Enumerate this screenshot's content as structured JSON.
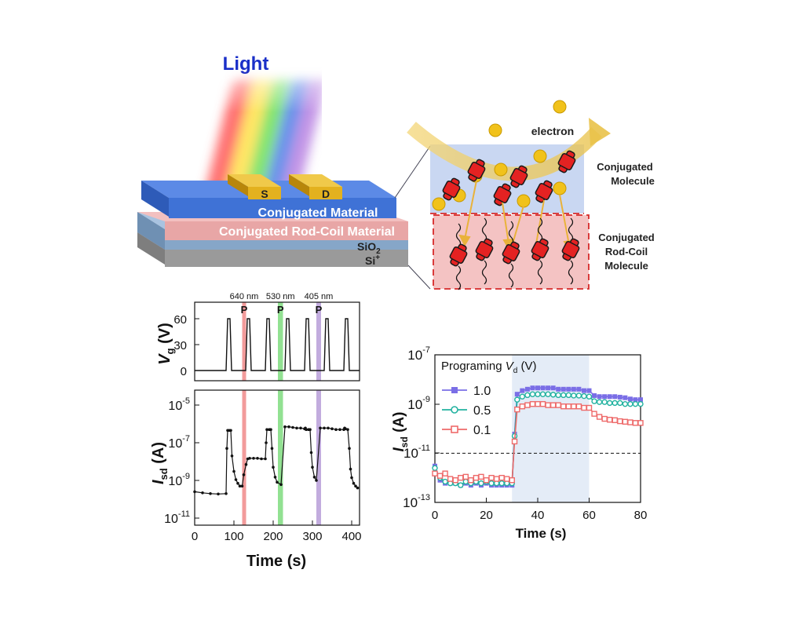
{
  "device": {
    "light_label": "Light",
    "source_label": "S",
    "drain_label": "D",
    "layer_top": "Conjugated Material",
    "layer_mid": "Conjugated Rod-Coil Material",
    "sio2_main": "SiO",
    "sio2_sub": "2",
    "si_main": "Si",
    "si_sup": "+",
    "colors": {
      "layer_top": "#3f72d6",
      "layer_mid": "#e8a6a6",
      "sio2": "#86a6c8",
      "si": "#9a9a9a",
      "electrode": "#e3b11e",
      "light_title": "#1a2fc8"
    }
  },
  "mechanism": {
    "electron_label": "electron",
    "top_label_line1": "Conjugated",
    "top_label_line2": "Molecule",
    "bottom_label_line1": "Conjugated",
    "bottom_label_line2": "Rod-Coil",
    "bottom_label_line3": "Molecule",
    "colors": {
      "top_box": "#c9d7f2",
      "bottom_box": "#f4c3c3",
      "dash": "#d62a2a",
      "molecule": "#e42222",
      "electron": "#f1c21b"
    }
  },
  "left_plots": {
    "vg_ylabel": "V",
    "vg_ylabel_sub": "g",
    "vg_ylabel_unit": " (V)",
    "isd_ylabel": "I",
    "isd_ylabel_sub": "sd",
    "isd_ylabel_unit": " (A)",
    "xlabel": "Time (s)",
    "pulse_label": "P",
    "wavelengths": [
      "640 nm",
      "530 nm",
      "405 nm"
    ],
    "vg_ticks": [
      "0",
      "30",
      "60"
    ],
    "isd_ticks": [
      {
        "base": "10",
        "exp": "-11"
      },
      {
        "base": "10",
        "exp": "-9"
      },
      {
        "base": "10",
        "exp": "-7"
      },
      {
        "base": "10",
        "exp": "-5"
      }
    ],
    "x_ticks": [
      "0",
      "100",
      "200",
      "300",
      "400"
    ]
  },
  "chart_data": [
    {
      "type": "line",
      "title": "",
      "xlabel": "Time (s)",
      "ylabel": "Vg (V)",
      "xlim": [
        0,
        420
      ],
      "ylim": [
        -8,
        72
      ],
      "series": [
        {
          "name": "Vg",
          "x": [
            0,
            80,
            84,
            90,
            94,
            130,
            134,
            140,
            144,
            180,
            184,
            190,
            194,
            230,
            234,
            240,
            244,
            280,
            284,
            290,
            294,
            330,
            334,
            340,
            344,
            380,
            384,
            390,
            394,
            420
          ],
          "y": [
            0,
            0,
            60,
            60,
            0,
            0,
            60,
            60,
            0,
            0,
            60,
            60,
            0,
            0,
            60,
            60,
            0,
            0,
            60,
            60,
            0,
            0,
            60,
            60,
            0,
            0,
            60,
            60,
            0,
            0
          ]
        }
      ],
      "illumination": [
        {
          "label": "640 nm",
          "start": 121,
          "end": 131,
          "color": "#f08a8a"
        },
        {
          "label": "530 nm",
          "start": 212,
          "end": 225,
          "color": "#7fdc7f"
        },
        {
          "label": "405 nm",
          "start": 310,
          "end": 322,
          "color": "#b79ed8"
        }
      ]
    },
    {
      "type": "line",
      "title": "",
      "xlabel": "Time (s)",
      "ylabel": "Isd (A)",
      "yscale": "log",
      "xlim": [
        0,
        420
      ],
      "ylim": [
        1e-11,
        1e-05
      ],
      "series": [
        {
          "name": "Isd",
          "x": [
            0,
            20,
            40,
            60,
            80,
            82,
            84,
            88,
            92,
            95,
            100,
            105,
            110,
            115,
            121,
            125,
            131,
            135,
            140,
            150,
            160,
            170,
            180,
            182,
            184,
            190,
            194,
            197,
            200,
            205,
            210,
            220,
            230,
            240,
            250,
            260,
            270,
            280,
            282,
            284,
            290,
            294,
            297,
            300,
            305,
            310,
            320,
            330,
            340,
            350,
            360,
            370,
            380,
            382,
            384,
            390,
            394,
            397,
            400,
            405,
            410,
            415
          ],
          "y": [
            2.5e-10,
            2.2e-10,
            2e-10,
            1.9e-10,
            2e-10,
            5e-08,
            4.5e-07,
            4.5e-07,
            4.5e-07,
            2e-08,
            3e-09,
            1.1e-09,
            7e-10,
            5e-10,
            5e-10,
            2e-09,
            7e-09,
            1.4e-08,
            1.5e-08,
            1.5e-08,
            1.5e-08,
            1.4e-08,
            1.4e-08,
            1e-07,
            5e-07,
            5e-07,
            5e-07,
            5e-08,
            5e-09,
            1.5e-09,
            8e-10,
            6e-10,
            7e-07,
            7e-07,
            6.5e-07,
            6e-07,
            6e-07,
            5.5e-07,
            6e-07,
            5e-07,
            5e-07,
            5e-07,
            3e-08,
            5e-09,
            1.5e-09,
            1e-09,
            6e-07,
            6e-07,
            6e-07,
            5.5e-07,
            5e-07,
            5e-07,
            5e-07,
            6e-07,
            5.5e-07,
            5e-07,
            5e-08,
            4e-09,
            1.4e-09,
            7e-10,
            5e-10,
            4e-10
          ]
        }
      ]
    },
    {
      "type": "line",
      "title": "",
      "legend_title": "Programing Vd (V)",
      "xlabel": "Time (s)",
      "ylabel": "Isd (A)",
      "yscale": "log",
      "xlim": [
        0,
        80
      ],
      "ylim": [
        1e-13,
        1e-07
      ],
      "reference_line": 1e-11,
      "shaded_region": [
        30,
        60
      ],
      "series": [
        {
          "name": "1.0",
          "color": "#7a6ee6",
          "x": [
            0,
            2,
            4,
            6,
            8,
            10,
            12,
            14,
            16,
            18,
            20,
            22,
            24,
            26,
            28,
            30,
            31,
            32,
            34,
            36,
            38,
            40,
            42,
            44,
            46,
            48,
            50,
            52,
            54,
            56,
            58,
            60,
            62,
            64,
            66,
            68,
            70,
            72,
            74,
            76,
            78,
            80
          ],
          "y": [
            3e-12,
            8e-13,
            6e-13,
            6e-13,
            6e-13,
            5e-13,
            6e-13,
            5e-13,
            6e-13,
            5e-13,
            6e-13,
            5e-13,
            5e-13,
            5e-13,
            5e-13,
            5e-13,
            6e-11,
            2.5e-09,
            3.5e-09,
            4e-09,
            4.5e-09,
            4.5e-09,
            4.5e-09,
            4.5e-09,
            4.5e-09,
            4e-09,
            4e-09,
            4e-09,
            4e-09,
            4e-09,
            3.5e-09,
            3.5e-09,
            2.2e-09,
            2e-09,
            2e-09,
            2e-09,
            2e-09,
            1.9e-09,
            1.8e-09,
            1.6e-09,
            1.5e-09,
            1.5e-09
          ]
        },
        {
          "name": "0.5",
          "color": "#22b2a0",
          "x": [
            0,
            2,
            4,
            6,
            8,
            10,
            12,
            14,
            16,
            18,
            20,
            22,
            24,
            26,
            28,
            30,
            31,
            32,
            34,
            36,
            38,
            40,
            42,
            44,
            46,
            48,
            50,
            52,
            54,
            56,
            58,
            60,
            62,
            64,
            66,
            68,
            70,
            72,
            74,
            76,
            78,
            80
          ],
          "y": [
            2.5e-12,
            1e-12,
            7e-13,
            6e-13,
            6e-13,
            5e-13,
            7e-13,
            6e-13,
            7e-13,
            6e-13,
            7e-13,
            6e-13,
            6e-13,
            6e-13,
            6e-13,
            6e-13,
            5e-11,
            1.5e-09,
            2e-09,
            2.3e-09,
            2.5e-09,
            2.5e-09,
            2.5e-09,
            2.5e-09,
            2.4e-09,
            2.3e-09,
            2.3e-09,
            2.3e-09,
            2.2e-09,
            2.2e-09,
            2.1e-09,
            2e-09,
            1.3e-09,
            1.2e-09,
            1.2e-09,
            1.1e-09,
            1.1e-09,
            1.1e-09,
            1e-09,
            1e-09,
            1e-09,
            1e-09
          ]
        },
        {
          "name": "0.1",
          "color": "#ee6a6a",
          "x": [
            0,
            2,
            4,
            6,
            8,
            10,
            12,
            14,
            16,
            18,
            20,
            22,
            24,
            26,
            28,
            30,
            31,
            32,
            34,
            36,
            38,
            40,
            42,
            44,
            46,
            48,
            50,
            52,
            54,
            56,
            58,
            60,
            62,
            64,
            66,
            68,
            70,
            72,
            74,
            76,
            78,
            80
          ],
          "y": [
            1.5e-12,
            1.2e-12,
            1.5e-12,
            9e-13,
            8e-13,
            1e-12,
            1.1e-12,
            8e-13,
            1e-12,
            1.1e-12,
            8e-13,
            1e-12,
            9e-13,
            1e-12,
            9e-13,
            8e-13,
            3e-11,
            6e-10,
            8e-10,
            9e-10,
            1e-09,
            1e-09,
            1e-09,
            9e-10,
            9e-10,
            9e-10,
            8e-10,
            8e-10,
            8e-10,
            8e-10,
            7e-10,
            7e-10,
            4e-10,
            3e-10,
            2.5e-10,
            2.3e-10,
            2.2e-10,
            2e-10,
            1.9e-10,
            1.8e-10,
            1.7e-10,
            1.7e-10
          ]
        }
      ]
    }
  ],
  "right_plot": {
    "legend_title_pre": "Programing ",
    "legend_title_var": "V",
    "legend_title_sub": "d",
    "legend_title_unit": " (V)",
    "ylabel": "I",
    "ylabel_sub": "sd",
    "ylabel_unit": " (A)",
    "xlabel": "Time (s)",
    "y_ticks": [
      {
        "base": "10",
        "exp": "-13"
      },
      {
        "base": "10",
        "exp": "-11"
      },
      {
        "base": "10",
        "exp": "-9"
      },
      {
        "base": "10",
        "exp": "-7"
      }
    ],
    "x_ticks": [
      "0",
      "20",
      "40",
      "60",
      "80"
    ]
  }
}
